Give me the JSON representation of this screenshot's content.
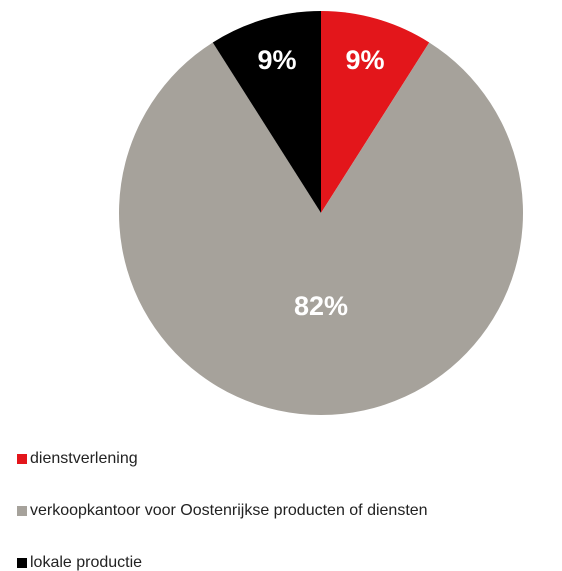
{
  "chart_data": {
    "type": "pie",
    "categories": [
      "dienstverlening",
      "verkoopkantoor voor Oostenrijkse producten of diensten",
      "lokale productie"
    ],
    "values": [
      9,
      82,
      9
    ],
    "value_labels": [
      "9%",
      "82%",
      "9%"
    ],
    "colors": [
      "#e3161b",
      "#a6a29b",
      "#000000"
    ]
  }
}
